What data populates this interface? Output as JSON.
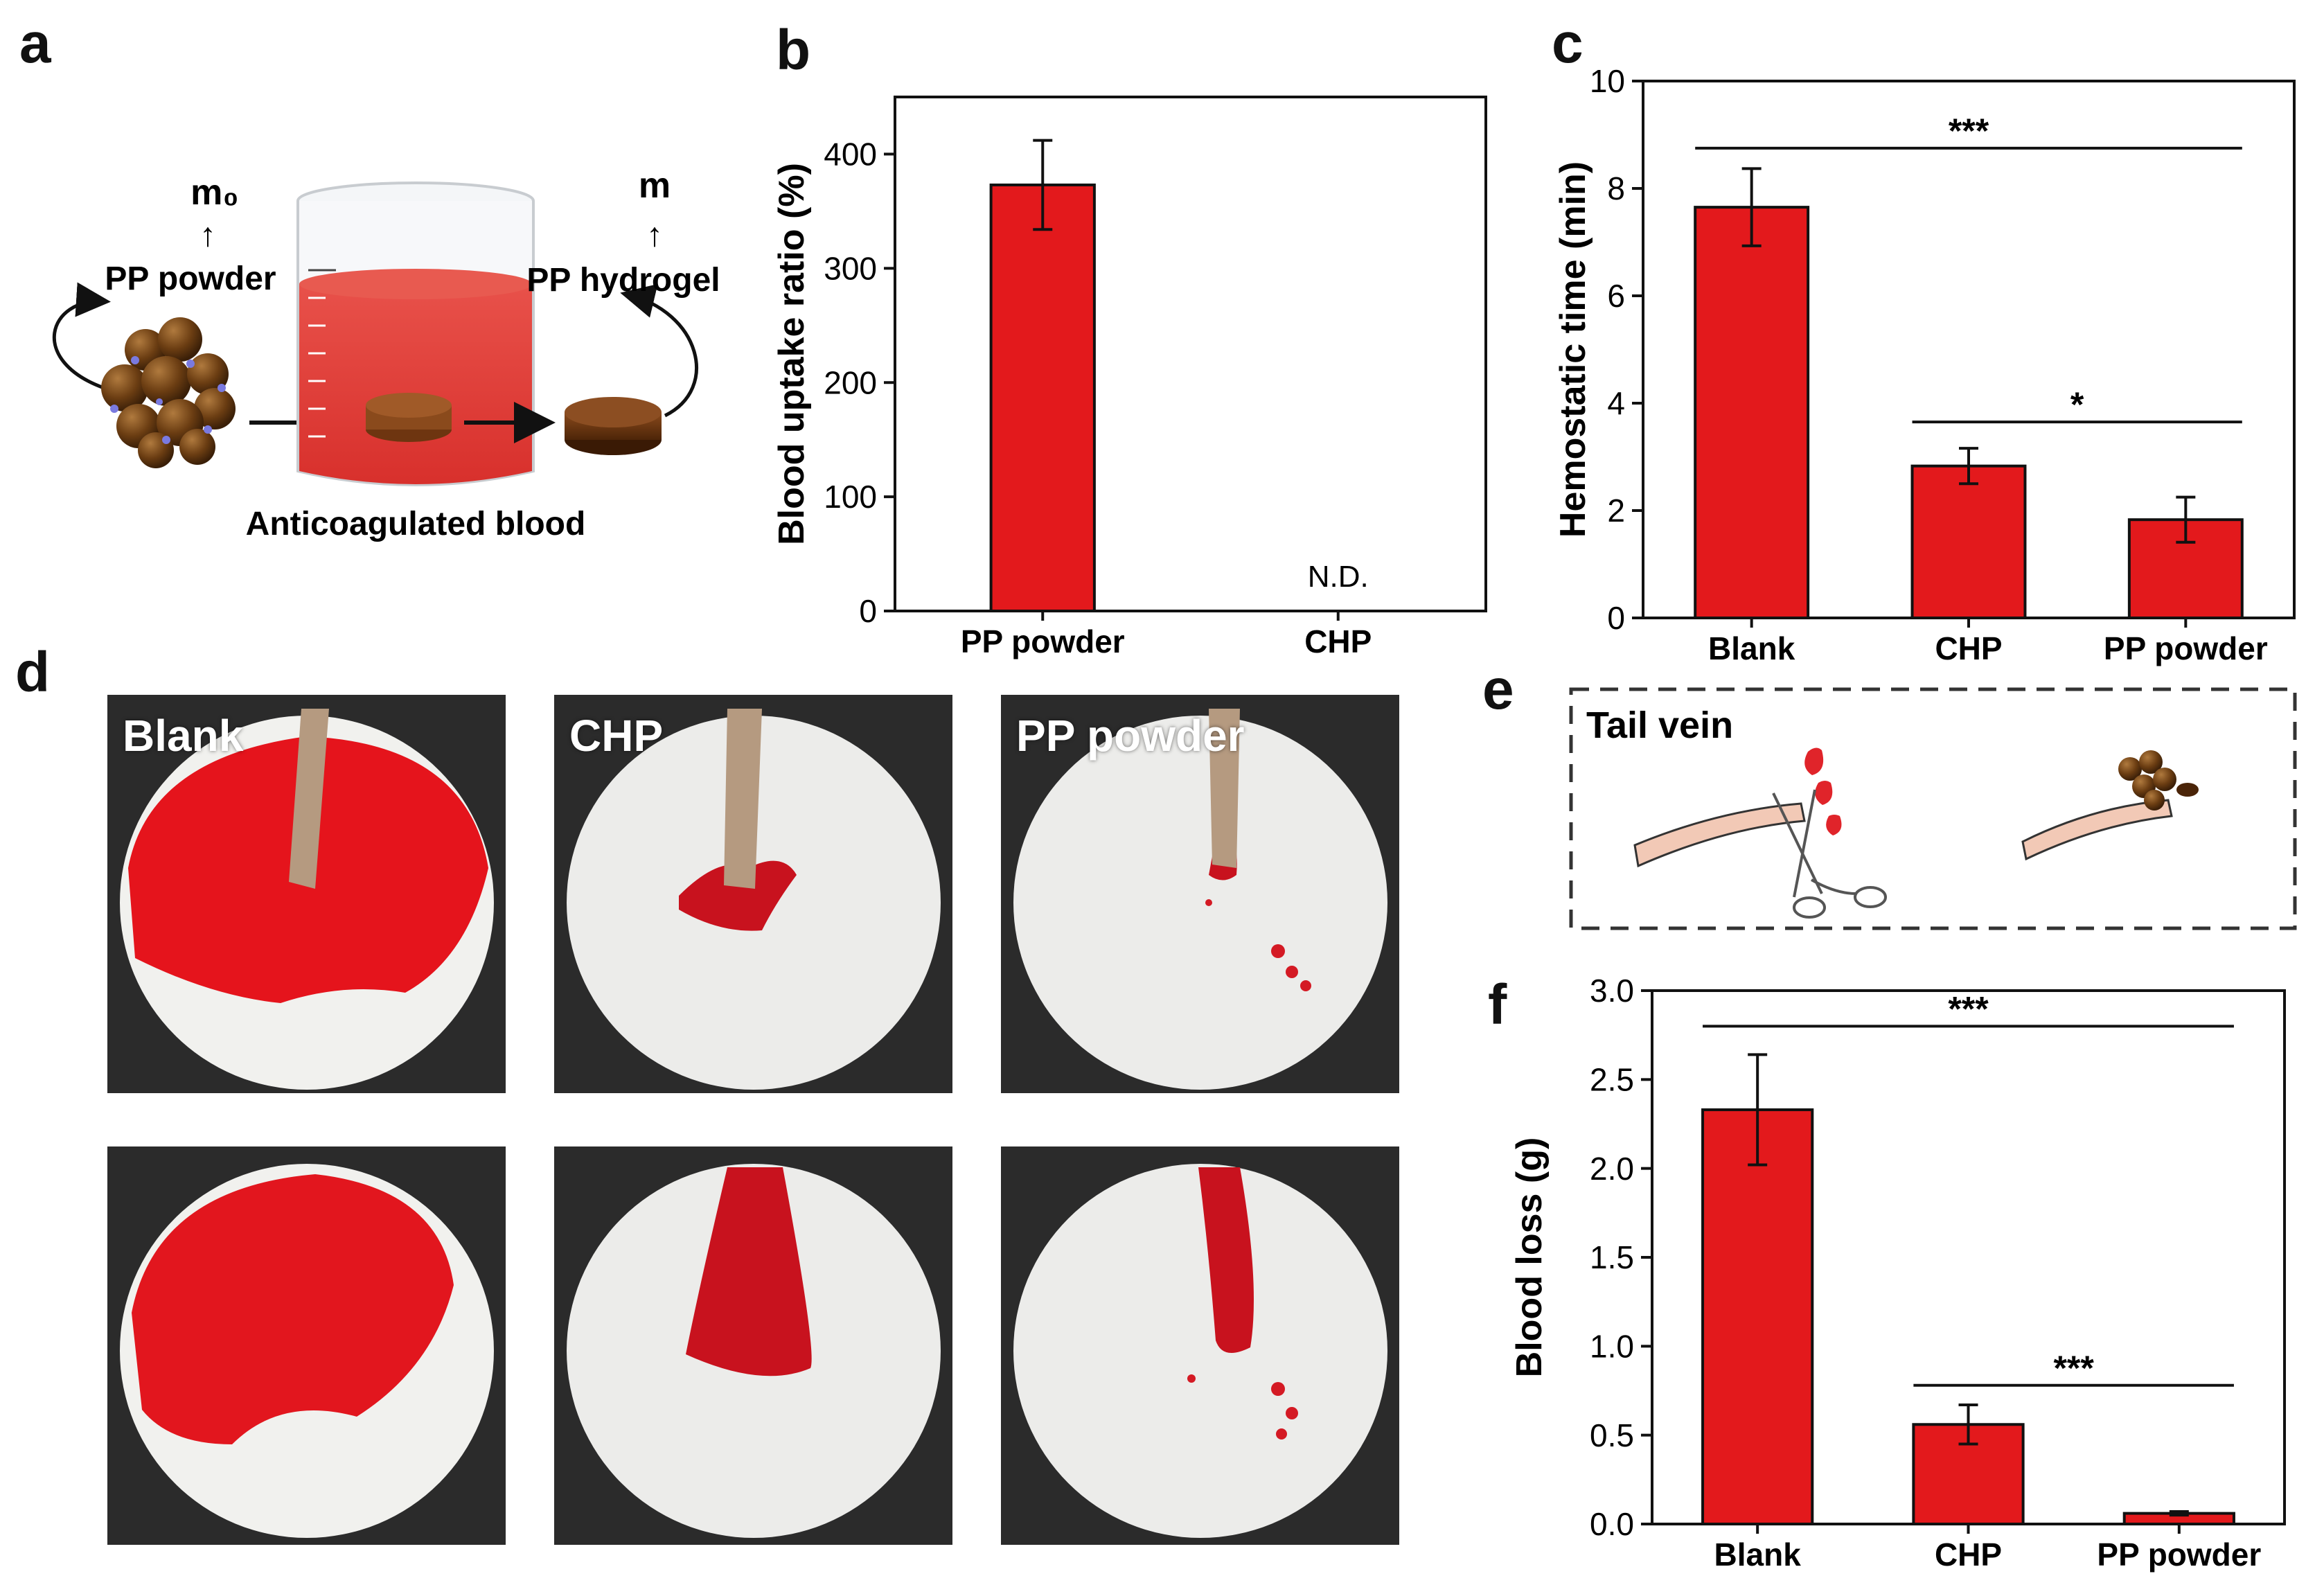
{
  "panels": {
    "a": {
      "letter": "a",
      "m0_label": "m₀",
      "m_label": "m",
      "arrow_up": "↑",
      "powder_label": "PP powder",
      "hydrogel_label": "PP hydrogel",
      "caption": "Anticoagulated blood"
    },
    "b": {
      "letter": "b"
    },
    "c": {
      "letter": "c"
    },
    "d": {
      "letter": "d",
      "labels": [
        "Blank",
        "CHP",
        "PP powder"
      ]
    },
    "e": {
      "letter": "e",
      "title": "Tail vein"
    },
    "f": {
      "letter": "f"
    }
  },
  "chart_data": [
    {
      "id": "b",
      "type": "bar",
      "categories": [
        "PP powder",
        "CHP"
      ],
      "values": [
        373,
        null
      ],
      "errors": [
        39,
        null
      ],
      "ylabel": "Blood uptake ratio (%)",
      "xlabel": "",
      "ylim": [
        0,
        450
      ],
      "yticks": [
        0,
        100,
        200,
        300,
        400
      ],
      "ytick_labels": [
        "0",
        "100",
        "200",
        "300",
        "400"
      ],
      "annotations": [
        {
          "category": "CHP",
          "text": "N.D."
        }
      ],
      "color": "#e3191c"
    },
    {
      "id": "c",
      "type": "bar",
      "categories": [
        "Blank",
        "CHP",
        "PP powder"
      ],
      "values": [
        7.65,
        2.83,
        1.83
      ],
      "errors": [
        0.72,
        0.33,
        0.42
      ],
      "ylabel": "Hemostatic time (min)",
      "xlabel": "",
      "ylim": [
        0,
        10
      ],
      "yticks": [
        0,
        2,
        4,
        6,
        8,
        10
      ],
      "ytick_labels": [
        "0",
        "2",
        "4",
        "6",
        "8",
        "10"
      ],
      "significance": [
        {
          "from": 0,
          "to": 2,
          "y": 8.75,
          "label": "***"
        },
        {
          "from": 1,
          "to": 2,
          "y": 3.65,
          "label": "*"
        }
      ],
      "color": "#e3191c"
    },
    {
      "id": "f",
      "type": "bar",
      "categories": [
        "Blank",
        "CHP",
        "PP powder"
      ],
      "values": [
        2.33,
        0.56,
        0.06
      ],
      "errors": [
        0.31,
        0.11,
        0.01
      ],
      "ylabel": "Blood loss (g)",
      "xlabel": "",
      "ylim": [
        0,
        3.0
      ],
      "yticks": [
        0,
        0.5,
        1.0,
        1.5,
        2.0,
        2.5,
        3.0
      ],
      "ytick_labels": [
        "0.0",
        "0.5",
        "1.0",
        "1.5",
        "2.0",
        "2.5",
        "3.0"
      ],
      "significance": [
        {
          "from": 0,
          "to": 2,
          "y": 2.8,
          "label": "***"
        },
        {
          "from": 1,
          "to": 2,
          "y": 0.78,
          "label": "***"
        }
      ],
      "color": "#e3191c"
    }
  ]
}
